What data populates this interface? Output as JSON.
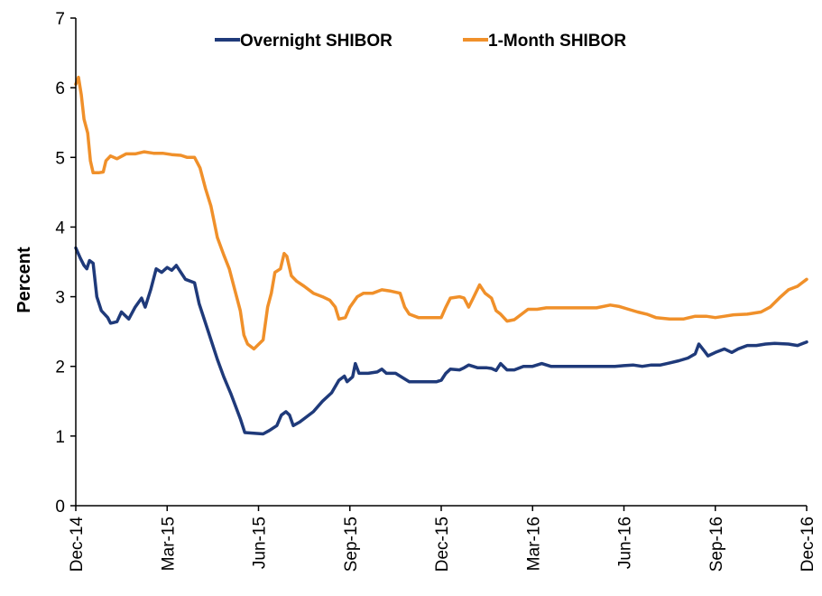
{
  "chart_data": {
    "type": "line",
    "title": "",
    "xlabel": "",
    "ylabel": "Percent",
    "ylim": [
      0,
      7
    ],
    "yticks": [
      "0",
      "1",
      "2",
      "3",
      "4",
      "5",
      "6",
      "7"
    ],
    "xticks": [
      "Dec-14",
      "Mar-15",
      "Jun-15",
      "Sep-15",
      "Dec-15",
      "Mar-16",
      "Jun-16",
      "Sep-16",
      "Dec-16"
    ],
    "grid": false,
    "legend": "top-center",
    "series": [
      {
        "name": "Overnight SHIBOR",
        "color": "#1f3a7a",
        "points": [
          [
            0.0,
            3.7
          ],
          [
            0.05,
            3.55
          ],
          [
            0.09,
            3.45
          ],
          [
            0.12,
            3.4
          ],
          [
            0.15,
            3.52
          ],
          [
            0.19,
            3.48
          ],
          [
            0.23,
            3.0
          ],
          [
            0.28,
            2.8
          ],
          [
            0.35,
            2.7
          ],
          [
            0.38,
            2.62
          ],
          [
            0.45,
            2.64
          ],
          [
            0.5,
            2.78
          ],
          [
            0.58,
            2.68
          ],
          [
            0.65,
            2.85
          ],
          [
            0.72,
            2.98
          ],
          [
            0.76,
            2.85
          ],
          [
            0.82,
            3.1
          ],
          [
            0.88,
            3.4
          ],
          [
            0.94,
            3.35
          ],
          [
            1.0,
            3.42
          ],
          [
            1.05,
            3.38
          ],
          [
            1.1,
            3.45
          ],
          [
            1.15,
            3.35
          ],
          [
            1.2,
            3.25
          ],
          [
            1.3,
            3.2
          ],
          [
            1.35,
            2.9
          ],
          [
            1.45,
            2.5
          ],
          [
            1.55,
            2.1
          ],
          [
            1.62,
            1.85
          ],
          [
            1.7,
            1.6
          ],
          [
            1.8,
            1.25
          ],
          [
            1.85,
            1.05
          ],
          [
            1.95,
            1.04
          ],
          [
            2.05,
            1.03
          ],
          [
            2.12,
            1.08
          ],
          [
            2.2,
            1.15
          ],
          [
            2.25,
            1.3
          ],
          [
            2.3,
            1.35
          ],
          [
            2.34,
            1.3
          ],
          [
            2.38,
            1.15
          ],
          [
            2.45,
            1.2
          ],
          [
            2.5,
            1.25
          ],
          [
            2.6,
            1.35
          ],
          [
            2.7,
            1.5
          ],
          [
            2.8,
            1.62
          ],
          [
            2.88,
            1.8
          ],
          [
            2.94,
            1.86
          ],
          [
            2.97,
            1.78
          ],
          [
            3.03,
            1.85
          ],
          [
            3.06,
            2.04
          ],
          [
            3.1,
            1.9
          ],
          [
            3.2,
            1.9
          ],
          [
            3.3,
            1.92
          ],
          [
            3.35,
            1.96
          ],
          [
            3.4,
            1.9
          ],
          [
            3.5,
            1.9
          ],
          [
            3.6,
            1.82
          ],
          [
            3.65,
            1.78
          ],
          [
            3.75,
            1.78
          ],
          [
            3.85,
            1.78
          ],
          [
            3.95,
            1.78
          ],
          [
            4.0,
            1.8
          ],
          [
            4.05,
            1.9
          ],
          [
            4.1,
            1.96
          ],
          [
            4.2,
            1.95
          ],
          [
            4.25,
            1.98
          ],
          [
            4.3,
            2.02
          ],
          [
            4.4,
            1.98
          ],
          [
            4.5,
            1.98
          ],
          [
            4.55,
            1.97
          ],
          [
            4.6,
            1.94
          ],
          [
            4.65,
            2.04
          ],
          [
            4.72,
            1.95
          ],
          [
            4.8,
            1.95
          ],
          [
            4.9,
            2.0
          ],
          [
            5.0,
            2.0
          ],
          [
            5.1,
            2.04
          ],
          [
            5.2,
            2.0
          ],
          [
            5.3,
            2.0
          ],
          [
            5.4,
            2.0
          ],
          [
            5.5,
            2.0
          ],
          [
            5.6,
            2.0
          ],
          [
            5.7,
            2.0
          ],
          [
            5.8,
            2.0
          ],
          [
            5.9,
            2.0
          ],
          [
            6.0,
            2.01
          ],
          [
            6.1,
            2.02
          ],
          [
            6.2,
            2.0
          ],
          [
            6.3,
            2.02
          ],
          [
            6.4,
            2.02
          ],
          [
            6.5,
            2.05
          ],
          [
            6.6,
            2.08
          ],
          [
            6.7,
            2.12
          ],
          [
            6.78,
            2.18
          ],
          [
            6.82,
            2.32
          ],
          [
            6.88,
            2.22
          ],
          [
            6.92,
            2.15
          ],
          [
            7.0,
            2.2
          ],
          [
            7.1,
            2.25
          ],
          [
            7.18,
            2.2
          ],
          [
            7.25,
            2.25
          ],
          [
            7.35,
            2.3
          ],
          [
            7.45,
            2.3
          ],
          [
            7.55,
            2.32
          ],
          [
            7.65,
            2.33
          ],
          [
            7.8,
            2.32
          ],
          [
            7.9,
            2.3
          ],
          [
            8.0,
            2.35
          ]
        ]
      },
      {
        "name": "1-Month SHIBOR",
        "color": "#f0902a",
        "points": [
          [
            0.0,
            6.05
          ],
          [
            0.03,
            6.15
          ],
          [
            0.06,
            5.9
          ],
          [
            0.09,
            5.55
          ],
          [
            0.13,
            5.35
          ],
          [
            0.16,
            4.95
          ],
          [
            0.19,
            4.78
          ],
          [
            0.25,
            4.78
          ],
          [
            0.3,
            4.79
          ],
          [
            0.33,
            4.95
          ],
          [
            0.38,
            5.02
          ],
          [
            0.45,
            4.98
          ],
          [
            0.55,
            5.05
          ],
          [
            0.65,
            5.05
          ],
          [
            0.75,
            5.08
          ],
          [
            0.85,
            5.06
          ],
          [
            0.95,
            5.06
          ],
          [
            1.05,
            5.04
          ],
          [
            1.15,
            5.03
          ],
          [
            1.22,
            5.0
          ],
          [
            1.3,
            5.0
          ],
          [
            1.36,
            4.85
          ],
          [
            1.42,
            4.55
          ],
          [
            1.48,
            4.3
          ],
          [
            1.55,
            3.85
          ],
          [
            1.62,
            3.6
          ],
          [
            1.68,
            3.4
          ],
          [
            1.74,
            3.1
          ],
          [
            1.8,
            2.8
          ],
          [
            1.84,
            2.45
          ],
          [
            1.88,
            2.32
          ],
          [
            1.95,
            2.25
          ],
          [
            2.05,
            2.38
          ],
          [
            2.1,
            2.85
          ],
          [
            2.14,
            3.05
          ],
          [
            2.18,
            3.35
          ],
          [
            2.24,
            3.4
          ],
          [
            2.28,
            3.62
          ],
          [
            2.31,
            3.58
          ],
          [
            2.36,
            3.3
          ],
          [
            2.42,
            3.22
          ],
          [
            2.5,
            3.15
          ],
          [
            2.6,
            3.05
          ],
          [
            2.7,
            3.0
          ],
          [
            2.78,
            2.95
          ],
          [
            2.84,
            2.85
          ],
          [
            2.88,
            2.68
          ],
          [
            2.95,
            2.7
          ],
          [
            3.0,
            2.85
          ],
          [
            3.08,
            3.0
          ],
          [
            3.15,
            3.05
          ],
          [
            3.25,
            3.05
          ],
          [
            3.35,
            3.1
          ],
          [
            3.45,
            3.08
          ],
          [
            3.55,
            3.05
          ],
          [
            3.6,
            2.85
          ],
          [
            3.65,
            2.75
          ],
          [
            3.75,
            2.7
          ],
          [
            3.85,
            2.7
          ],
          [
            4.0,
            2.7
          ],
          [
            4.05,
            2.85
          ],
          [
            4.1,
            2.98
          ],
          [
            4.2,
            3.0
          ],
          [
            4.25,
            2.98
          ],
          [
            4.3,
            2.85
          ],
          [
            4.35,
            2.98
          ],
          [
            4.42,
            3.17
          ],
          [
            4.48,
            3.05
          ],
          [
            4.55,
            2.98
          ],
          [
            4.6,
            2.8
          ],
          [
            4.65,
            2.75
          ],
          [
            4.72,
            2.65
          ],
          [
            4.8,
            2.67
          ],
          [
            4.88,
            2.75
          ],
          [
            4.95,
            2.82
          ],
          [
            5.05,
            2.82
          ],
          [
            5.15,
            2.84
          ],
          [
            5.25,
            2.84
          ],
          [
            5.4,
            2.84
          ],
          [
            5.55,
            2.84
          ],
          [
            5.7,
            2.84
          ],
          [
            5.85,
            2.88
          ],
          [
            5.95,
            2.86
          ],
          [
            6.05,
            2.82
          ],
          [
            6.15,
            2.78
          ],
          [
            6.25,
            2.75
          ],
          [
            6.35,
            2.7
          ],
          [
            6.5,
            2.68
          ],
          [
            6.65,
            2.68
          ],
          [
            6.78,
            2.72
          ],
          [
            6.9,
            2.72
          ],
          [
            7.0,
            2.7
          ],
          [
            7.1,
            2.72
          ],
          [
            7.2,
            2.74
          ],
          [
            7.35,
            2.75
          ],
          [
            7.5,
            2.78
          ],
          [
            7.6,
            2.85
          ],
          [
            7.7,
            2.98
          ],
          [
            7.8,
            3.1
          ],
          [
            7.9,
            3.15
          ],
          [
            8.0,
            3.25
          ]
        ]
      }
    ]
  }
}
